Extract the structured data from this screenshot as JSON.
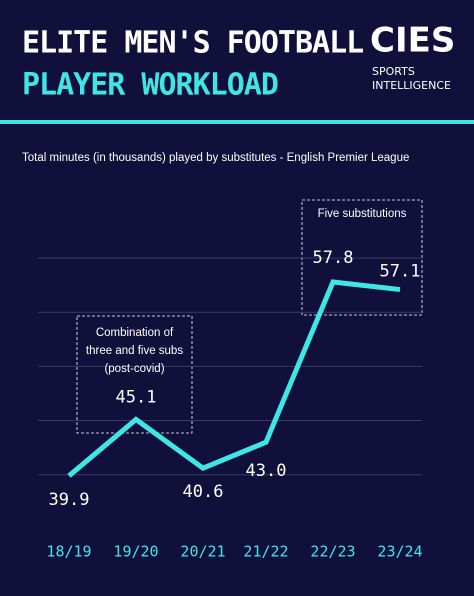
{
  "logo": {
    "name": "CIES",
    "tagline": [
      "SPORTS",
      "INTELLIGENCE"
    ]
  },
  "chart_data": {
    "type": "line",
    "title": [
      "ELITE MEN'S FOOTBALL",
      "PLAYER WORKLOAD"
    ],
    "subtitle": "Total minutes (in thousands) played by substitutes - English Premier League",
    "categories": [
      "18/19",
      "19/20",
      "20/21",
      "21/22",
      "22/23",
      "23/24"
    ],
    "values": [
      39.9,
      45.1,
      40.6,
      43.0,
      57.8,
      57.1
    ],
    "value_labels": [
      "39.9",
      "45.1",
      "40.6",
      "43.0",
      "57.8",
      "57.1"
    ],
    "color": "#3fe6e6",
    "ylim": [
      36,
      62
    ],
    "ygrid": [
      40,
      45,
      50,
      55,
      60
    ],
    "grid": true,
    "annotations": [
      {
        "lines": [
          "Combination of",
          "three and five subs",
          "(post-covid)"
        ]
      },
      {
        "lines": [
          "Five substitutions"
        ]
      }
    ]
  }
}
